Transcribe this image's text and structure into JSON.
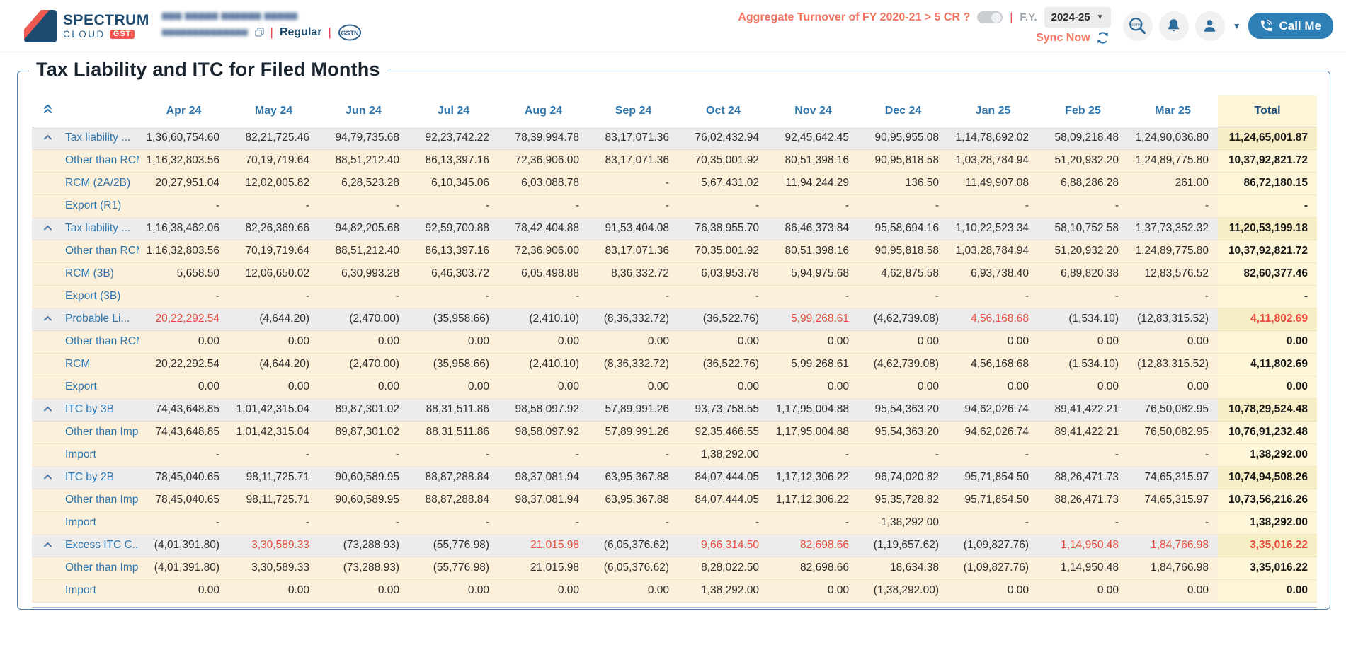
{
  "header": {
    "logo": {
      "name": "SPECTRUM",
      "sub": "CLOUD",
      "badge": "GST"
    },
    "company": {
      "name_masked": "▆▆▆ ▆▆▆▆▆ ▆▆▆▆▆▆ ▆▆▆▆▆",
      "gstin_masked": "▆▆▆▆▆▆▆▆▆▆▆▆▆▆",
      "plan": "Regular",
      "separator": "|"
    },
    "aggregate_question": "Aggregate Turnover of FY 2020-21 > 5 CR ?",
    "toggle_state": "off",
    "pipe": "|",
    "fy_label": "F.Y.",
    "fy_value": "2024-25",
    "sync_label": "Sync Now",
    "call_me_label": "Call Me",
    "icons": {
      "logo_mark": "spectrum-logo-mark",
      "gstn": "gstn-logo-icon",
      "copy": "copy-icon",
      "refresh": "sync-refresh-icon",
      "search": "gstin-search-icon",
      "bell": "notifications-icon",
      "user": "account-icon",
      "caret": "chevron-down-icon",
      "phone": "call-phone-icon"
    }
  },
  "panel": {
    "title": "Tax Liability and ITC for Filed Months"
  },
  "colors": {
    "accent_blue": "#2e76ad",
    "alert_red": "#e74c3c",
    "salmon": "#f4735f",
    "call_button": "#2f7fb7",
    "total_column_bg": "#fdf5d7",
    "group_row_bg": "#ececec",
    "child_row_bg": "#fcf0da"
  },
  "table": {
    "months": [
      "Apr 24",
      "May 24",
      "Jun 24",
      "Jul 24",
      "Aug 24",
      "Sep 24",
      "Oct 24",
      "Nov 24",
      "Dec 24",
      "Jan 25",
      "Feb 25",
      "Mar 25"
    ],
    "total_label": "Total",
    "rows": [
      {
        "label": "Tax liability ...",
        "group": true,
        "values": [
          "1,36,60,754.60",
          "82,21,725.46",
          "94,79,735.68",
          "92,23,742.22",
          "78,39,994.78",
          "83,17,071.36",
          "76,02,432.94",
          "92,45,642.45",
          "90,95,955.08",
          "1,14,78,692.02",
          "58,09,218.48",
          "1,24,90,036.80"
        ],
        "total": "11,24,65,001.87",
        "red": []
      },
      {
        "label": "Other than RCM...",
        "group": false,
        "values": [
          "1,16,32,803.56",
          "70,19,719.64",
          "88,51,212.40",
          "86,13,397.16",
          "72,36,906.00",
          "83,17,071.36",
          "70,35,001.92",
          "80,51,398.16",
          "90,95,818.58",
          "1,03,28,784.94",
          "51,20,932.20",
          "1,24,89,775.80"
        ],
        "total": "10,37,92,821.72",
        "red": []
      },
      {
        "label": "RCM (2A/2B)",
        "group": false,
        "values": [
          "20,27,951.04",
          "12,02,005.82",
          "6,28,523.28",
          "6,10,345.06",
          "6,03,088.78",
          "-",
          "5,67,431.02",
          "11,94,244.29",
          "136.50",
          "11,49,907.08",
          "6,88,286.28",
          "261.00"
        ],
        "total": "86,72,180.15",
        "red": []
      },
      {
        "label": "Export (R1)",
        "group": false,
        "values": [
          "-",
          "-",
          "-",
          "-",
          "-",
          "-",
          "-",
          "-",
          "-",
          "-",
          "-",
          "-"
        ],
        "total": "-",
        "red": []
      },
      {
        "label": "Tax liability ...",
        "group": true,
        "values": [
          "1,16,38,462.06",
          "82,26,369.66",
          "94,82,205.68",
          "92,59,700.88",
          "78,42,404.88",
          "91,53,404.08",
          "76,38,955.70",
          "86,46,373.84",
          "95,58,694.16",
          "1,10,22,523.34",
          "58,10,752.58",
          "1,37,73,352.32"
        ],
        "total": "11,20,53,199.18",
        "red": []
      },
      {
        "label": "Other than RCM...",
        "group": false,
        "values": [
          "1,16,32,803.56",
          "70,19,719.64",
          "88,51,212.40",
          "86,13,397.16",
          "72,36,906.00",
          "83,17,071.36",
          "70,35,001.92",
          "80,51,398.16",
          "90,95,818.58",
          "1,03,28,784.94",
          "51,20,932.20",
          "1,24,89,775.80"
        ],
        "total": "10,37,92,821.72",
        "red": []
      },
      {
        "label": "RCM (3B)",
        "group": false,
        "values": [
          "5,658.50",
          "12,06,650.02",
          "6,30,993.28",
          "6,46,303.72",
          "6,05,498.88",
          "8,36,332.72",
          "6,03,953.78",
          "5,94,975.68",
          "4,62,875.58",
          "6,93,738.40",
          "6,89,820.38",
          "12,83,576.52"
        ],
        "total": "82,60,377.46",
        "red": []
      },
      {
        "label": "Export (3B)",
        "group": false,
        "values": [
          "-",
          "-",
          "-",
          "-",
          "-",
          "-",
          "-",
          "-",
          "-",
          "-",
          "-",
          "-"
        ],
        "total": "-",
        "red": []
      },
      {
        "label": "Probable Li...",
        "group": true,
        "values": [
          "20,22,292.54",
          "(4,644.20)",
          "(2,470.00)",
          "(35,958.66)",
          "(2,410.10)",
          "(8,36,332.72)",
          "(36,522.76)",
          "5,99,268.61",
          "(4,62,739.08)",
          "4,56,168.68",
          "(1,534.10)",
          "(12,83,315.52)"
        ],
        "total": "4,11,802.69",
        "red": [
          0,
          7,
          9,
          12
        ]
      },
      {
        "label": "Other than RCM...",
        "group": false,
        "values": [
          "0.00",
          "0.00",
          "0.00",
          "0.00",
          "0.00",
          "0.00",
          "0.00",
          "0.00",
          "0.00",
          "0.00",
          "0.00",
          "0.00"
        ],
        "total": "0.00",
        "red": []
      },
      {
        "label": "RCM",
        "group": false,
        "values": [
          "20,22,292.54",
          "(4,644.20)",
          "(2,470.00)",
          "(35,958.66)",
          "(2,410.10)",
          "(8,36,332.72)",
          "(36,522.76)",
          "5,99,268.61",
          "(4,62,739.08)",
          "4,56,168.68",
          "(1,534.10)",
          "(12,83,315.52)"
        ],
        "total": "4,11,802.69",
        "red": []
      },
      {
        "label": "Export",
        "group": false,
        "values": [
          "0.00",
          "0.00",
          "0.00",
          "0.00",
          "0.00",
          "0.00",
          "0.00",
          "0.00",
          "0.00",
          "0.00",
          "0.00",
          "0.00"
        ],
        "total": "0.00",
        "red": []
      },
      {
        "label": "ITC by 3B",
        "group": true,
        "values": [
          "74,43,648.85",
          "1,01,42,315.04",
          "89,87,301.02",
          "88,31,511.86",
          "98,58,097.92",
          "57,89,991.26",
          "93,73,758.55",
          "1,17,95,004.88",
          "95,54,363.20",
          "94,62,026.74",
          "89,41,422.21",
          "76,50,082.95"
        ],
        "total": "10,78,29,524.48",
        "red": []
      },
      {
        "label": "Other than Imp...",
        "group": false,
        "values": [
          "74,43,648.85",
          "1,01,42,315.04",
          "89,87,301.02",
          "88,31,511.86",
          "98,58,097.92",
          "57,89,991.26",
          "92,35,466.55",
          "1,17,95,004.88",
          "95,54,363.20",
          "94,62,026.74",
          "89,41,422.21",
          "76,50,082.95"
        ],
        "total": "10,76,91,232.48",
        "red": []
      },
      {
        "label": "Import",
        "group": false,
        "values": [
          "-",
          "-",
          "-",
          "-",
          "-",
          "-",
          "1,38,292.00",
          "-",
          "-",
          "-",
          "-",
          "-"
        ],
        "total": "1,38,292.00",
        "red": []
      },
      {
        "label": "ITC by 2B",
        "group": true,
        "values": [
          "78,45,040.65",
          "98,11,725.71",
          "90,60,589.95",
          "88,87,288.84",
          "98,37,081.94",
          "63,95,367.88",
          "84,07,444.05",
          "1,17,12,306.22",
          "96,74,020.82",
          "95,71,854.50",
          "88,26,471.73",
          "74,65,315.97"
        ],
        "total": "10,74,94,508.26",
        "red": []
      },
      {
        "label": "Other than Imp...",
        "group": false,
        "values": [
          "78,45,040.65",
          "98,11,725.71",
          "90,60,589.95",
          "88,87,288.84",
          "98,37,081.94",
          "63,95,367.88",
          "84,07,444.05",
          "1,17,12,306.22",
          "95,35,728.82",
          "95,71,854.50",
          "88,26,471.73",
          "74,65,315.97"
        ],
        "total": "10,73,56,216.26",
        "red": []
      },
      {
        "label": "Import",
        "group": false,
        "values": [
          "-",
          "-",
          "-",
          "-",
          "-",
          "-",
          "-",
          "-",
          "1,38,292.00",
          "-",
          "-",
          "-"
        ],
        "total": "1,38,292.00",
        "red": []
      },
      {
        "label": "Excess ITC C...",
        "group": true,
        "values": [
          "(4,01,391.80)",
          "3,30,589.33",
          "(73,288.93)",
          "(55,776.98)",
          "21,015.98",
          "(6,05,376.62)",
          "9,66,314.50",
          "82,698.66",
          "(1,19,657.62)",
          "(1,09,827.76)",
          "1,14,950.48",
          "1,84,766.98"
        ],
        "total": "3,35,016.22",
        "red": [
          1,
          4,
          6,
          7,
          10,
          11,
          12
        ]
      },
      {
        "label": "Other than Imp...",
        "group": false,
        "values": [
          "(4,01,391.80)",
          "3,30,589.33",
          "(73,288.93)",
          "(55,776.98)",
          "21,015.98",
          "(6,05,376.62)",
          "8,28,022.50",
          "82,698.66",
          "18,634.38",
          "(1,09,827.76)",
          "1,14,950.48",
          "1,84,766.98"
        ],
        "total": "3,35,016.22",
        "red": []
      },
      {
        "label": "Import",
        "group": false,
        "values": [
          "0.00",
          "0.00",
          "0.00",
          "0.00",
          "0.00",
          "0.00",
          "1,38,292.00",
          "0.00",
          "(1,38,292.00)",
          "0.00",
          "0.00",
          "0.00"
        ],
        "total": "0.00",
        "red": []
      }
    ]
  }
}
